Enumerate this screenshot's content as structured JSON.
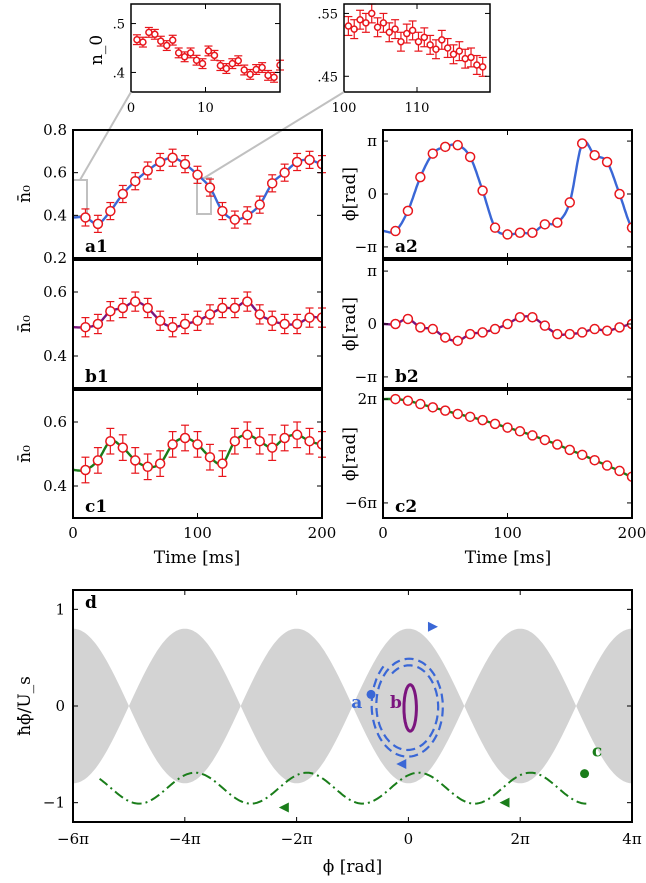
{
  "colors": {
    "blue": "#3a67d6",
    "purple": "#7b157e",
    "green": "#1a7d1a",
    "marker": "#e8161c",
    "band": "#d3d3d3",
    "zoom": "#c0c0c0"
  },
  "chart_data": [
    {
      "id": "inset-left",
      "type": "line",
      "ylabel": "n_0",
      "xlim": [
        0,
        10
      ],
      "ylim": [
        0.36,
        0.54
      ],
      "xticks": [
        "0",
        "10"
      ],
      "yticks": [
        ".4",
        ".5"
      ],
      "ytick_values": [
        0.4,
        0.5
      ],
      "data_x": [
        0.4,
        0.8,
        1.2,
        1.6,
        2.0,
        2.4,
        2.8,
        3.2,
        3.6,
        4.0,
        4.4,
        4.8,
        5.2,
        5.6,
        6.0,
        6.4,
        6.8,
        7.2,
        7.6,
        8.0,
        8.4,
        8.8,
        9.2,
        9.6,
        10.0
      ],
      "data_y": [
        0.467,
        0.462,
        0.482,
        0.478,
        0.464,
        0.455,
        0.466,
        0.44,
        0.432,
        0.44,
        0.425,
        0.418,
        0.444,
        0.435,
        0.414,
        0.408,
        0.418,
        0.424,
        0.405,
        0.396,
        0.406,
        0.41,
        0.394,
        0.39,
        0.415
      ]
    },
    {
      "id": "inset-right",
      "type": "line",
      "xlim": [
        100,
        110
      ],
      "ylim": [
        0.425,
        0.565
      ],
      "xticks": [
        "100",
        "110"
      ],
      "yticks": [
        ".45",
        ".55"
      ],
      "ytick_values": [
        0.45,
        0.55
      ],
      "data_x": [
        100.3,
        100.7,
        101.1,
        101.5,
        101.9,
        102.3,
        102.7,
        103.1,
        103.5,
        103.9,
        104.3,
        104.7,
        105.1,
        105.5,
        105.9,
        106.3,
        106.7,
        107.1,
        107.5,
        107.9,
        108.3,
        108.7,
        109.1,
        109.5
      ],
      "data_y": [
        0.53,
        0.525,
        0.54,
        0.535,
        0.55,
        0.528,
        0.535,
        0.52,
        0.525,
        0.505,
        0.518,
        0.523,
        0.505,
        0.512,
        0.5,
        0.493,
        0.508,
        0.495,
        0.485,
        0.49,
        0.478,
        0.48,
        0.468,
        0.465
      ]
    },
    {
      "id": "a1",
      "type": "line",
      "label": "a1",
      "ylabel": "n̄₀",
      "xlim": [
        0,
        200
      ],
      "ylim": [
        0.2,
        0.8
      ],
      "yticks": [
        "0.2",
        "0.4",
        "0.6",
        "0.8"
      ],
      "ytick_values": [
        0.2,
        0.4,
        0.6,
        0.8
      ],
      "curve": "blue",
      "data_x": [
        10,
        20,
        30,
        40,
        50,
        60,
        70,
        80,
        90,
        100,
        110,
        120,
        130,
        140,
        150,
        160,
        170,
        180,
        190,
        200
      ],
      "data_y": [
        0.39,
        0.36,
        0.42,
        0.5,
        0.56,
        0.61,
        0.65,
        0.67,
        0.64,
        0.59,
        0.53,
        0.42,
        0.38,
        0.4,
        0.45,
        0.55,
        0.6,
        0.65,
        0.66,
        0.64
      ]
    },
    {
      "id": "a2",
      "type": "line",
      "label": "a2",
      "ylabel": "ϕ[rad]",
      "xlim": [
        0,
        200
      ],
      "ylim": [
        -3.8,
        3.8
      ],
      "yticks": [
        "−π",
        "0",
        "π"
      ],
      "ytick_values": [
        -3.1416,
        0,
        3.1416
      ],
      "curve": "blue",
      "data_x": [
        10,
        20,
        30,
        40,
        50,
        60,
        70,
        80,
        90,
        100,
        110,
        120,
        130,
        140,
        150,
        160,
        170,
        180,
        190,
        200
      ],
      "data_y": [
        -2.2,
        -1.0,
        1.0,
        2.4,
        2.8,
        2.9,
        2.2,
        0.2,
        -2.0,
        -2.4,
        -2.3,
        -2.3,
        -1.8,
        -1.7,
        -0.5,
        3.0,
        2.3,
        1.9,
        0.0,
        -2.0
      ]
    },
    {
      "id": "b1",
      "type": "line",
      "label": "b1",
      "ylabel": "n̄₀",
      "xlim": [
        0,
        200
      ],
      "ylim": [
        0.3,
        0.7
      ],
      "yticks": [
        "0.4",
        "0.6"
      ],
      "ytick_values": [
        0.4,
        0.6
      ],
      "curve": "purple",
      "data_x": [
        10,
        20,
        30,
        40,
        50,
        60,
        70,
        80,
        90,
        100,
        110,
        120,
        130,
        140,
        150,
        160,
        170,
        180,
        190,
        200
      ],
      "data_y": [
        0.49,
        0.5,
        0.54,
        0.55,
        0.57,
        0.55,
        0.51,
        0.49,
        0.5,
        0.51,
        0.53,
        0.55,
        0.55,
        0.57,
        0.53,
        0.51,
        0.5,
        0.5,
        0.52,
        0.52
      ]
    },
    {
      "id": "b2",
      "type": "line",
      "label": "b2",
      "ylabel": "ϕ[rad]",
      "xlim": [
        0,
        200
      ],
      "ylim": [
        -3.8,
        3.8
      ],
      "yticks": [
        "−π",
        "0",
        "π"
      ],
      "ytick_values": [
        -3.1416,
        0,
        3.1416
      ],
      "curve": "purple",
      "data_x": [
        10,
        20,
        30,
        40,
        50,
        60,
        70,
        80,
        90,
        100,
        110,
        120,
        130,
        140,
        150,
        160,
        170,
        180,
        190,
        200
      ],
      "data_y": [
        0.0,
        0.3,
        -0.2,
        -0.3,
        -0.8,
        -1.0,
        -0.6,
        -0.5,
        -0.3,
        0.0,
        0.4,
        0.4,
        -0.1,
        -0.6,
        -0.6,
        -0.5,
        -0.3,
        -0.4,
        -0.2,
        0.0
      ]
    },
    {
      "id": "c1",
      "type": "line",
      "label": "c1",
      "ylabel": "n̄₀",
      "xlim": [
        0,
        200
      ],
      "ylim": [
        0.3,
        0.7
      ],
      "yticks": [
        "0.4",
        "0.6"
      ],
      "ytick_values": [
        0.4,
        0.6
      ],
      "curve": "green",
      "data_x": [
        10,
        20,
        30,
        40,
        50,
        60,
        70,
        80,
        90,
        100,
        110,
        120,
        130,
        140,
        150,
        160,
        170,
        180,
        190,
        200
      ],
      "data_y": [
        0.45,
        0.48,
        0.54,
        0.52,
        0.48,
        0.46,
        0.47,
        0.53,
        0.55,
        0.53,
        0.49,
        0.47,
        0.54,
        0.56,
        0.54,
        0.52,
        0.55,
        0.56,
        0.54,
        0.53
      ]
    },
    {
      "id": "c2",
      "type": "line",
      "label": "c2",
      "ylabel": "ϕ[rad]",
      "xlim": [
        0,
        200
      ],
      "ylim": [
        -22.5,
        8.5
      ],
      "yticks": [
        "−6π",
        "2π"
      ],
      "ytick_values": [
        -18.85,
        6.283
      ],
      "curve": "green",
      "data_x": [
        10,
        20,
        30,
        40,
        50,
        60,
        70,
        80,
        90,
        100,
        110,
        120,
        130,
        140,
        150,
        160,
        170,
        180,
        190,
        200
      ],
      "data_y": [
        6.3,
        5.9,
        5.1,
        4.3,
        3.5,
        2.7,
        2.0,
        1.2,
        0.3,
        -0.6,
        -1.5,
        -2.5,
        -3.6,
        -4.7,
        -6.0,
        -7.2,
        -8.5,
        -9.8,
        -11.1,
        -12.5
      ]
    },
    {
      "id": "d",
      "type": "line",
      "label": "d",
      "xlabel": "ϕ [rad]",
      "ylabel": "ħϕ̇/U_s",
      "xlim": [
        -18.85,
        12.566
      ],
      "ylim": [
        -1.2,
        1.2
      ],
      "xticks": [
        "−6π",
        "−4π",
        "−2π",
        "0",
        "2π",
        "4π"
      ],
      "xtick_values": [
        -18.85,
        -12.566,
        -6.283,
        0,
        6.283,
        12.566
      ],
      "yticks": [
        "−1",
        "0",
        "1"
      ],
      "ytick_values": [
        -1,
        0,
        1
      ],
      "trajectory_labels": [
        "a",
        "b",
        "c"
      ],
      "band_amplitude": 0.8
    }
  ],
  "xlabel_time": "Time [ms]",
  "time_ticks": [
    "0",
    "100",
    "200"
  ],
  "time_ticks_right": [
    "0",
    "100",
    "200"
  ]
}
